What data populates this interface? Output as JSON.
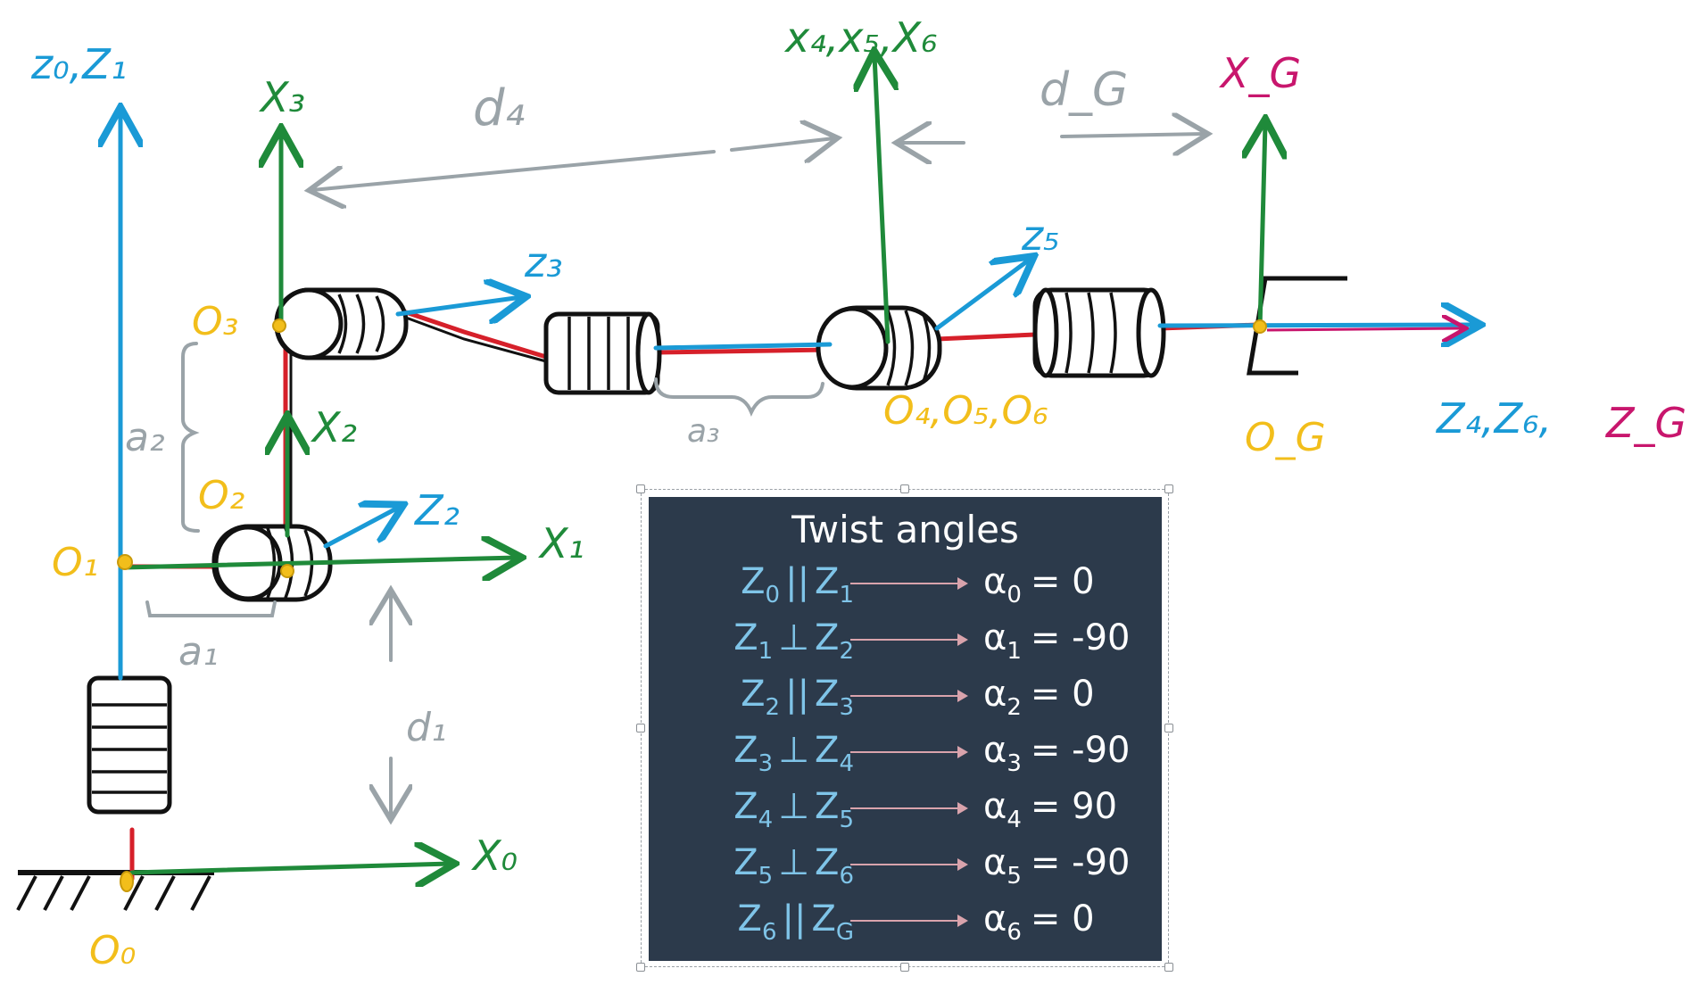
{
  "frame_labels": {
    "z0_z1": "z₀,Z₁",
    "x3": "X₃",
    "x4_x5_x6": "x₄,x₅,X₆",
    "xG": "X_G",
    "z3": "z₃",
    "z5": "z₅",
    "x2": "X₂",
    "z2": "Z₂",
    "x1": "X₁",
    "x0": "X₀",
    "z4_z6_zG_a": "Z₄,Z₆,",
    "z4_z6_zG_b": "Z_G"
  },
  "origin_labels": {
    "o0": "O₀",
    "o1": "O₁",
    "o2": "O₂",
    "o3": "O₃",
    "o456": "O₄,O₅,O₆",
    "oG": "O_G"
  },
  "dimension_labels": {
    "d1": "d₁",
    "a1": "a₁",
    "a2": "a₂",
    "a3": "a₃",
    "d4": "d₄",
    "dG": "d_G"
  },
  "twist_table": {
    "title": "Twist angles",
    "rows": [
      {
        "z_a": "Z",
        "sa": "0",
        "op": "||",
        "z_b": "Z",
        "sb": "1",
        "alpha": "α",
        "sub": "0",
        "value": "= 0"
      },
      {
        "z_a": "Z",
        "sa": "1",
        "op": "⊥",
        "z_b": "Z",
        "sb": "2",
        "alpha": "α",
        "sub": "1",
        "value": "= -90"
      },
      {
        "z_a": "Z",
        "sa": "2",
        "op": "||",
        "z_b": "Z",
        "sb": "3",
        "alpha": "α",
        "sub": "2",
        "value": "= 0"
      },
      {
        "z_a": "Z",
        "sa": "3",
        "op": "⊥",
        "z_b": "Z",
        "sb": "4",
        "alpha": "α",
        "sub": "3",
        "value": "= -90"
      },
      {
        "z_a": "Z",
        "sa": "4",
        "op": "⊥",
        "z_b": "Z",
        "sb": "5",
        "alpha": "α",
        "sub": "4",
        "value": "= 90"
      },
      {
        "z_a": "Z",
        "sa": "5",
        "op": "⊥",
        "z_b": "Z",
        "sb": "6",
        "alpha": "α",
        "sub": "5",
        "value": "= -90"
      },
      {
        "z_a": "Z",
        "sa": "6",
        "op": "||",
        "z_b": "Z",
        "sb": "G",
        "alpha": "α",
        "sub": "6",
        "value": "= 0"
      }
    ]
  },
  "colors": {
    "z_axis": "#1a9ad6",
    "x_axis": "#1f8a3a",
    "origin": "#f2be1b",
    "dimension": "#9aa3a8",
    "gripper_axis": "#c8166d",
    "link": "#d6202a",
    "panel_bg": "#2c3a4b"
  }
}
